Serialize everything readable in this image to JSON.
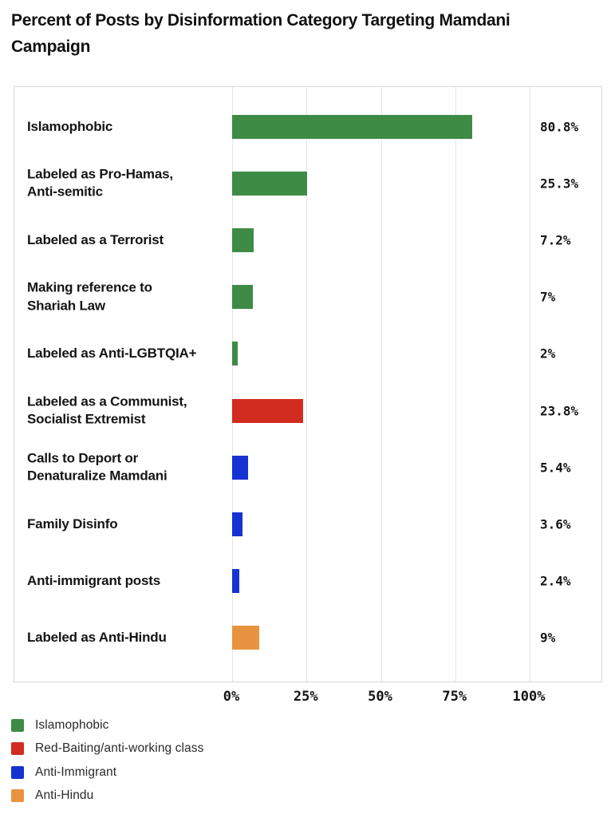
{
  "title": "Percent of Posts by Disinformation Category Targeting Mamdani Campaign",
  "colors": {
    "islamophobic_green": "#3E8B46",
    "red_baiting_red": "#D22B20",
    "anti_immigrant_blue": "#1533D2",
    "anti_hindu_orange": "#E8933F",
    "gridline": "#e4e4e4",
    "panel_border": "#d8d8d8",
    "text": "#141414"
  },
  "chart_data": {
    "type": "bar",
    "orientation": "horizontal",
    "title": "Percent of Posts by Disinformation Category Targeting Mamdani Campaign",
    "xlabel": "",
    "ylabel": "",
    "xlim": [
      0,
      100
    ],
    "grid": true,
    "x_ticks": [
      "0%",
      "25%",
      "50%",
      "75%",
      "100%"
    ],
    "x_tick_values": [
      0,
      25,
      50,
      75,
      100
    ],
    "categories": [
      "Islamophobic",
      "Labeled as Pro-Hamas, Anti-semitic",
      "Labeled as a Terrorist",
      "Making reference to Shariah Law",
      "Labeled as Anti-LGBTQIA+",
      "Labeled as a Communist, Socialist Extremist",
      "Calls to Deport or Denaturalize Mamdani",
      "Family Disinfo",
      "Anti-immigrant posts",
      "Labeled as Anti-Hindu"
    ],
    "values": [
      80.8,
      25.3,
      7.2,
      7,
      2,
      23.8,
      5.4,
      3.6,
      2.4,
      9
    ],
    "bars": [
      {
        "label": "Islamophobic",
        "value": 80.8,
        "display": "80.8%",
        "series": "Islamophobic",
        "color": "#3E8B46"
      },
      {
        "label": "Labeled as Pro-Hamas,\nAnti-semitic",
        "value": 25.3,
        "display": "25.3%",
        "series": "Islamophobic",
        "color": "#3E8B46"
      },
      {
        "label": "Labeled as a Terrorist",
        "value": 7.2,
        "display": "7.2%",
        "series": "Islamophobic",
        "color": "#3E8B46"
      },
      {
        "label": "Making reference to\nShariah Law",
        "value": 7,
        "display": "7%",
        "series": "Islamophobic",
        "color": "#3E8B46"
      },
      {
        "label": "Labeled as Anti-LGBTQIA+",
        "value": 2,
        "display": "2%",
        "series": "Islamophobic",
        "color": "#3E8B46"
      },
      {
        "label": "Labeled as a Communist,\nSocialist Extremist",
        "value": 23.8,
        "display": "23.8%",
        "series": "Red-Baiting/anti-working class",
        "color": "#D22B20"
      },
      {
        "label": "Calls to Deport or\nDenaturalize Mamdani",
        "value": 5.4,
        "display": "5.4%",
        "series": "Anti-Immigrant",
        "color": "#1533D2"
      },
      {
        "label": "Family Disinfo",
        "value": 3.6,
        "display": "3.6%",
        "series": "Anti-Immigrant",
        "color": "#1533D2"
      },
      {
        "label": "Anti-immigrant posts",
        "value": 2.4,
        "display": "2.4%",
        "series": "Anti-Immigrant",
        "color": "#1533D2"
      },
      {
        "label": "Labeled as Anti-Hindu",
        "value": 9,
        "display": "9%",
        "series": "Anti-Hindu",
        "color": "#E8933F"
      }
    ],
    "legend_position": "bottom-left",
    "legend": [
      {
        "label": "Islamophobic",
        "color": "#3E8B46"
      },
      {
        "label": "Red-Baiting/anti-working class",
        "color": "#D22B20"
      },
      {
        "label": "Anti-Immigrant",
        "color": "#1533D2"
      },
      {
        "label": "Anti-Hindu",
        "color": "#E8933F"
      }
    ]
  }
}
